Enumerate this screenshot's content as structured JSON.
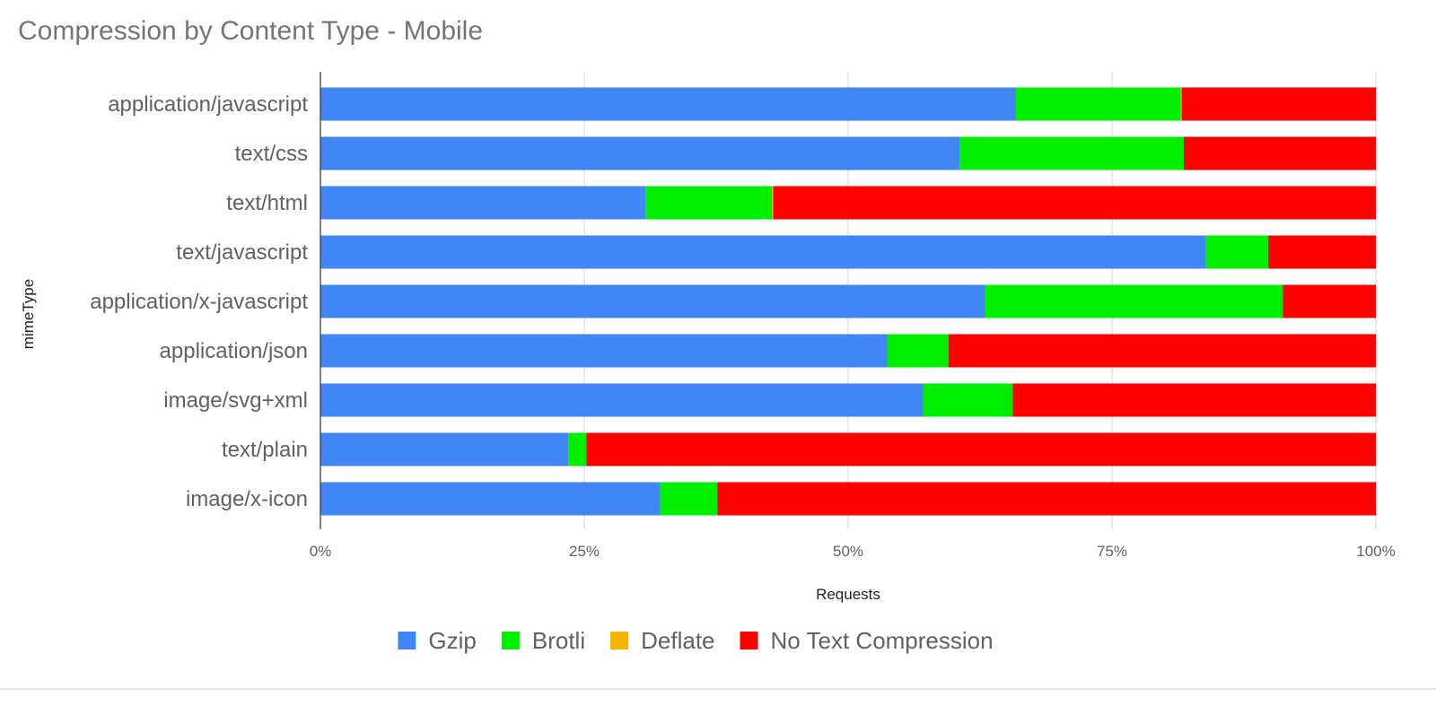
{
  "chart_data": {
    "type": "bar",
    "orientation": "horizontal",
    "stacked": "percent",
    "title": "Compression by Content Type - Mobile",
    "xlabel": "Requests",
    "ylabel": "mimeType",
    "xlim": [
      0,
      100
    ],
    "xticks": [
      "0%",
      "25%",
      "50%",
      "75%",
      "100%"
    ],
    "grid": true,
    "legend_position": "bottom",
    "categories": [
      "application/javascript",
      "text/css",
      "text/html",
      "text/javascript",
      "application/x-javascript",
      "application/json",
      "image/svg+xml",
      "text/plain",
      "image/x-icon"
    ],
    "series": [
      {
        "name": "Gzip",
        "color": "#4285f4",
        "values": [
          65.9,
          60.6,
          30.8,
          83.9,
          63.0,
          53.7,
          57.1,
          23.5,
          32.2
        ]
      },
      {
        "name": "Brotli",
        "color": "#00ee00",
        "values": [
          15.6,
          21.2,
          12.0,
          5.9,
          28.2,
          5.8,
          8.5,
          1.7,
          5.4
        ]
      },
      {
        "name": "Deflate",
        "color": "#f4b400",
        "values": [
          0.1,
          0.0,
          0.1,
          0.0,
          0.0,
          0.0,
          0.0,
          0.0,
          0.0
        ]
      },
      {
        "name": "No Text Compression",
        "color": "#ff0000",
        "values": [
          18.4,
          18.2,
          57.1,
          10.2,
          8.8,
          40.5,
          34.4,
          74.8,
          62.4
        ]
      }
    ]
  }
}
